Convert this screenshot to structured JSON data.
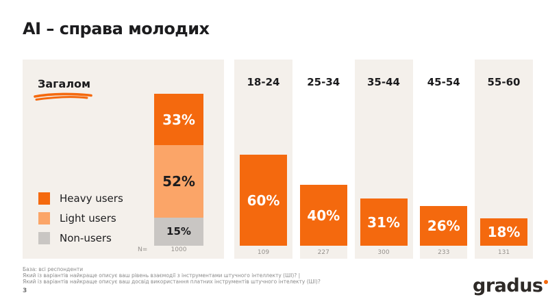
{
  "title": "AI – справа молодих",
  "overall": {
    "label": "Загалом",
    "n_label": "N=",
    "n_value": "1000",
    "segments": [
      {
        "name": "Heavy users",
        "pct": 33,
        "label": "33%",
        "color": "#f4690e"
      },
      {
        "name": "Light users",
        "pct": 52,
        "label": "52%",
        "color": "#fba568"
      },
      {
        "name": "Non-users",
        "pct": 15,
        "label": "15%",
        "color": "#c9c6c3"
      }
    ]
  },
  "legend": {
    "items": [
      {
        "label": "Heavy users",
        "color": "#f4690e"
      },
      {
        "label": "Light users",
        "color": "#fba568"
      },
      {
        "label": "Non-users",
        "color": "#c9c6c3"
      }
    ]
  },
  "age_groups": [
    {
      "label": "18-24",
      "pct": 60,
      "pct_label": "60%",
      "n": "109"
    },
    {
      "label": "25-34",
      "pct": 40,
      "pct_label": "40%",
      "n": "227"
    },
    {
      "label": "35-44",
      "pct": 31,
      "pct_label": "31%",
      "n": "300"
    },
    {
      "label": "45-54",
      "pct": 26,
      "pct_label": "26%",
      "n": "233"
    },
    {
      "label": "55-60",
      "pct": 18,
      "pct_label": "18%",
      "n": "131"
    }
  ],
  "footer": {
    "lines": [
      "База: всі респонденти",
      "Який із варіантів найкраще описує ваш рівень взаємодії з інструментами штучного інтеллекту (ШІ)? |",
      "Який із варіантів найкраще описує ваш досвід використання платних інструментів штучного інтелекту (ШІ)?"
    ],
    "page_number": "3"
  },
  "logo": {
    "text": "gradus"
  },
  "colors": {
    "accent_orange": "#f4690e",
    "light_orange": "#fba568",
    "gray_segment": "#c9c6c3",
    "panel_beige": "#f4f0eb"
  },
  "chart_data": {
    "type": "bar",
    "title": "AI – справа молодих",
    "unit": "%",
    "grid": false,
    "ylim": [
      0,
      100
    ],
    "legend": [
      "Heavy users",
      "Light users",
      "Non-users"
    ],
    "legend_position": "left",
    "overall_stacked": {
      "category": "Загалом",
      "n": 1000,
      "segments": [
        {
          "name": "Heavy users",
          "value": 33
        },
        {
          "name": "Light users",
          "value": 52
        },
        {
          "name": "Non-users",
          "value": 15
        }
      ]
    },
    "by_age": {
      "categories": [
        "18-24",
        "25-34",
        "35-44",
        "45-54",
        "55-60"
      ],
      "values": [
        60,
        40,
        31,
        26,
        18
      ],
      "n_per_category": [
        109,
        227,
        300,
        233,
        131
      ]
    }
  }
}
